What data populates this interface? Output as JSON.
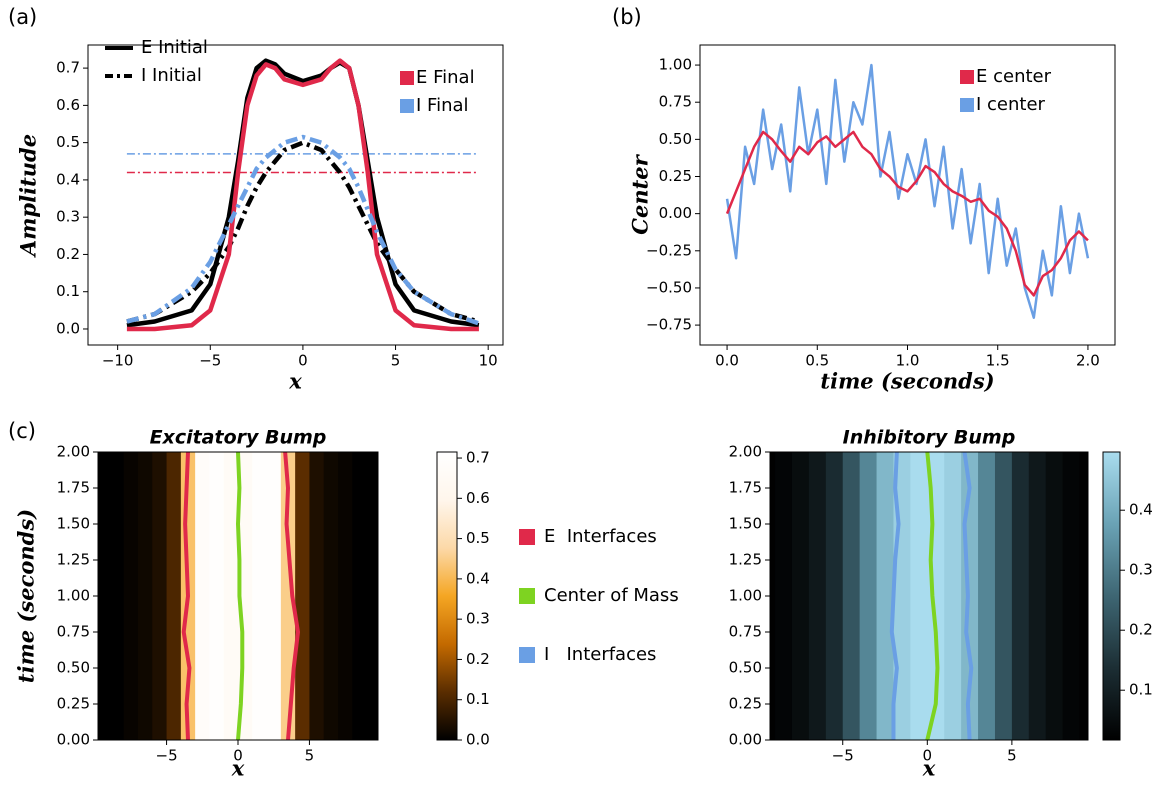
{
  "chart_data": [
    {
      "type": "line",
      "panel": "(a)",
      "xlabel": "x",
      "ylabel": "Amplitude",
      "x": [
        -9.5,
        -8,
        -6,
        -5,
        -4,
        -3.5,
        -3,
        -2.5,
        -2,
        -1.5,
        -1,
        0,
        1,
        1.5,
        2,
        2.5,
        3,
        3.5,
        4,
        5,
        6,
        8,
        9.5
      ],
      "series": [
        {
          "name": "E Initial",
          "color": "#000000",
          "linestyle": "solid",
          "legend": "upper left",
          "legend_marker": "line",
          "values": [
            0.01,
            0.02,
            0.05,
            0.12,
            0.3,
            0.45,
            0.62,
            0.7,
            0.72,
            0.71,
            0.685,
            0.665,
            0.68,
            0.7,
            0.715,
            0.7,
            0.6,
            0.45,
            0.3,
            0.12,
            0.05,
            0.02,
            0.01
          ]
        },
        {
          "name": "I Initial",
          "color": "#000000",
          "linestyle": "dashdot",
          "legend": "upper left",
          "legend_marker": "line",
          "values": [
            0.02,
            0.04,
            0.1,
            0.15,
            0.22,
            0.27,
            0.33,
            0.38,
            0.42,
            0.45,
            0.48,
            0.5,
            0.48,
            0.45,
            0.42,
            0.38,
            0.33,
            0.28,
            0.23,
            0.16,
            0.1,
            0.04,
            0.02
          ]
        },
        {
          "name": "E Final",
          "color": "#e0294a",
          "linestyle": "solid",
          "legend": "upper right",
          "legend_marker": "square",
          "values": [
            0,
            0,
            0.01,
            0.05,
            0.2,
            0.42,
            0.6,
            0.68,
            0.71,
            0.7,
            0.67,
            0.655,
            0.67,
            0.7,
            0.72,
            0.7,
            0.6,
            0.42,
            0.2,
            0.05,
            0.01,
            0,
            0
          ]
        },
        {
          "name": "I Final",
          "color": "#6a9fe4",
          "linestyle": "dashdot",
          "legend": "upper right",
          "legend_marker": "square",
          "values": [
            0.02,
            0.04,
            0.11,
            0.18,
            0.28,
            0.33,
            0.38,
            0.43,
            0.46,
            0.48,
            0.5,
            0.515,
            0.5,
            0.48,
            0.46,
            0.43,
            0.38,
            0.32,
            0.26,
            0.16,
            0.1,
            0.04,
            0.015
          ]
        }
      ],
      "hlines": [
        {
          "value": 0.47,
          "color": "#6a9fe4"
        },
        {
          "value": 0.42,
          "color": "#e0294a"
        }
      ],
      "xlim": [
        -11.6,
        10.8
      ],
      "xticks": [
        {
          "value": -10,
          "label": "−10"
        },
        {
          "value": -5,
          "label": "−5"
        },
        0,
        5,
        10
      ],
      "ylim": [
        -0.043,
        0.762
      ],
      "yticks": [
        {
          "value": 0,
          "label": "0.0"
        },
        0.1,
        0.2,
        0.3,
        0.4,
        0.5,
        0.6,
        0.7
      ]
    },
    {
      "type": "line",
      "panel": "(b)",
      "xlabel": "time (seconds)",
      "ylabel": "Center",
      "x": [
        0,
        0.05,
        0.1,
        0.15,
        0.2,
        0.25,
        0.3,
        0.35,
        0.4,
        0.45,
        0.5,
        0.55,
        0.6,
        0.65,
        0.7,
        0.75,
        0.8,
        0.85,
        0.9,
        0.95,
        1,
        1.05,
        1.1,
        1.15,
        1.2,
        1.25,
        1.3,
        1.35,
        1.4,
        1.45,
        1.5,
        1.55,
        1.6,
        1.65,
        1.7,
        1.75,
        1.8,
        1.85,
        1.9,
        1.95,
        2
      ],
      "series": [
        {
          "name": "E center",
          "color": "#e0294a",
          "linestyle": "solid",
          "legend": "upper right",
          "legend_marker": "square",
          "values": [
            0,
            0.15,
            0.3,
            0.45,
            0.55,
            0.5,
            0.42,
            0.35,
            0.45,
            0.4,
            0.48,
            0.52,
            0.45,
            0.5,
            0.55,
            0.45,
            0.4,
            0.3,
            0.25,
            0.18,
            0.15,
            0.22,
            0.32,
            0.28,
            0.2,
            0.15,
            0.12,
            0.08,
            0.1,
            0.02,
            -0.02,
            -0.1,
            -0.25,
            -0.48,
            -0.55,
            -0.42,
            -0.38,
            -0.3,
            -0.18,
            -0.12,
            -0.18
          ]
        },
        {
          "name": "I center",
          "color": "#6a9fe4",
          "linestyle": "solid",
          "legend": "upper right",
          "legend_marker": "square",
          "values": [
            0.1,
            -0.3,
            0.45,
            0.2,
            0.7,
            0.3,
            0.6,
            0.15,
            0.85,
            0.4,
            0.7,
            0.2,
            0.9,
            0.35,
            0.75,
            0.6,
            1.0,
            0.25,
            0.55,
            0.1,
            0.4,
            0.2,
            0.5,
            0.05,
            0.45,
            -0.1,
            0.3,
            -0.2,
            0.2,
            -0.4,
            0.1,
            -0.35,
            -0.1,
            -0.5,
            -0.7,
            -0.25,
            -0.55,
            0.05,
            -0.4,
            0,
            -0.3
          ]
        }
      ],
      "xlim": [
        -0.15,
        2.15
      ],
      "xticks": [
        {
          "value": 0,
          "label": "0.0"
        },
        {
          "value": 0.5,
          "label": "0.5"
        },
        {
          "value": 1,
          "label": "1.0"
        },
        {
          "value": 1.5,
          "label": "1.5"
        },
        {
          "value": 2,
          "label": "2.0"
        }
      ],
      "ylim": [
        -0.884,
        1.135
      ],
      "yticks": [
        {
          "value": 1,
          "label": "1.00"
        },
        {
          "value": 0.75,
          "label": "0.75"
        },
        {
          "value": 0.5,
          "label": "0.50"
        },
        {
          "value": 0.25,
          "label": "0.25"
        },
        {
          "value": 0,
          "label": "0.00"
        },
        {
          "value": -0.25,
          "label": "−0.25"
        },
        {
          "value": -0.5,
          "label": "−0.50"
        },
        {
          "value": -0.75,
          "label": "−0.75"
        }
      ]
    },
    {
      "type": "heatmap",
      "panel": "(c)",
      "title": "Excitatory Bump",
      "xlabel": "x",
      "ylabel": "time (seconds)",
      "x": [
        -9.5,
        -8.5,
        -7.5,
        -6.5,
        -5.5,
        -4.5,
        -3.5,
        -2.5,
        -1.5,
        -0.5,
        0.5,
        1.5,
        2.5,
        3.5,
        4.5,
        5.5,
        6.5,
        7.5,
        8.5,
        9.5
      ],
      "values": [
        0,
        0,
        0.01,
        0.02,
        0.04,
        0.1,
        0.42,
        0.68,
        0.7,
        0.66,
        0.66,
        0.7,
        0.7,
        0.45,
        0.12,
        0.04,
        0.02,
        0.01,
        0,
        0
      ],
      "colormap": [
        "#000000",
        "#5a2d00",
        "#c46a00",
        "#f5a623",
        "#fcd9a8",
        "#fff6ec",
        "#ffffff"
      ],
      "clim": [
        0,
        0.715
      ],
      "cticks": [
        {
          "value": 0,
          "label": "0.0"
        },
        0.1,
        0.2,
        0.3,
        0.4,
        0.5,
        0.6,
        0.7
      ],
      "time": [
        0,
        0.25,
        0.5,
        0.75,
        1,
        1.25,
        1.5,
        1.75,
        2
      ],
      "series": [
        {
          "name": "E  Interfaces",
          "color": "#e0294a",
          "lines": [
            [
              -3.5,
              -3.6,
              -3.4,
              -3.8,
              -3.5,
              -3.6,
              -3.7,
              -3.6,
              -3.5
            ],
            [
              3.5,
              3.7,
              3.9,
              4.2,
              3.8,
              3.6,
              3.4,
              3.5,
              3.3
            ]
          ]
        },
        {
          "name": "Center of Mass",
          "color": "#7ed321",
          "lines": [
            [
              0,
              0.2,
              0.3,
              0.3,
              0.1,
              0.1,
              0,
              0.1,
              0
            ]
          ]
        }
      ],
      "xlim": [
        -9.8,
        9.8
      ],
      "xticks": [
        {
          "value": -5,
          "label": "−5"
        },
        0,
        5
      ],
      "ylim": [
        0,
        2
      ],
      "yticks": [
        {
          "value": 0,
          "label": "0.00"
        },
        {
          "value": 0.25,
          "label": "0.25"
        },
        {
          "value": 0.5,
          "label": "0.50"
        },
        {
          "value": 0.75,
          "label": "0.75"
        },
        {
          "value": 1,
          "label": "1.00"
        },
        {
          "value": 1.25,
          "label": "1.25"
        },
        {
          "value": 1.5,
          "label": "1.50"
        },
        {
          "value": 1.75,
          "label": "1.75"
        },
        {
          "value": 2,
          "label": "2.00"
        }
      ]
    },
    {
      "type": "heatmap",
      "title": "Inhibitory Bump",
      "xlabel": "x",
      "x": [
        -9.5,
        -8.5,
        -7.5,
        -6.5,
        -5.5,
        -4.5,
        -3.5,
        -2.5,
        -1.5,
        -0.5,
        0.5,
        1.5,
        2.5,
        3.5,
        4.5,
        5.5,
        6.5,
        7.5,
        8.5,
        9.5
      ],
      "values": [
        0.02,
        0.03,
        0.05,
        0.08,
        0.13,
        0.22,
        0.32,
        0.42,
        0.47,
        0.5,
        0.5,
        0.47,
        0.42,
        0.32,
        0.22,
        0.13,
        0.08,
        0.05,
        0.03,
        0.02
      ],
      "colormap": [
        "#000000",
        "#1c2e34",
        "#3e6673",
        "#6aa2b5",
        "#a9dcee"
      ],
      "clim": [
        0.017,
        0.497
      ],
      "cticks": [
        0.1,
        0.2,
        0.3,
        0.4
      ],
      "time": [
        0,
        0.25,
        0.5,
        0.75,
        1,
        1.25,
        1.5,
        1.75,
        2
      ],
      "series": [
        {
          "name": "I   Interfaces",
          "color": "#6a9fe4",
          "lines": [
            [
              -2,
              -2,
              -1.8,
              -2.1,
              -2,
              -1.9,
              -1.7,
              -1.9,
              -1.8
            ],
            [
              2.5,
              2.4,
              2.6,
              2.3,
              2.4,
              2.3,
              2.2,
              2.5,
              2.2
            ]
          ]
        },
        {
          "color": "#7ed321",
          "lines": [
            [
              0,
              0.5,
              0.6,
              0.5,
              0.3,
              0.2,
              0.3,
              0.2,
              0
            ]
          ]
        }
      ],
      "xlim": [
        -9.3,
        9.5
      ],
      "xticks": [
        {
          "value": -5,
          "label": "−5"
        },
        0,
        5
      ],
      "ylim": [
        0,
        2
      ],
      "yticks": [
        {
          "value": 0,
          "label": "0.00"
        },
        {
          "value": 0.25,
          "label": "0.25"
        },
        {
          "value": 0.5,
          "label": "0.50"
        },
        {
          "value": 0.75,
          "label": "0.75"
        },
        {
          "value": 1,
          "label": "1.00"
        },
        {
          "value": 1.25,
          "label": "1.25"
        },
        {
          "value": 1.5,
          "label": "1.50"
        },
        {
          "value": 1.75,
          "label": "1.75"
        },
        {
          "value": 2,
          "label": "2.00"
        }
      ]
    }
  ]
}
